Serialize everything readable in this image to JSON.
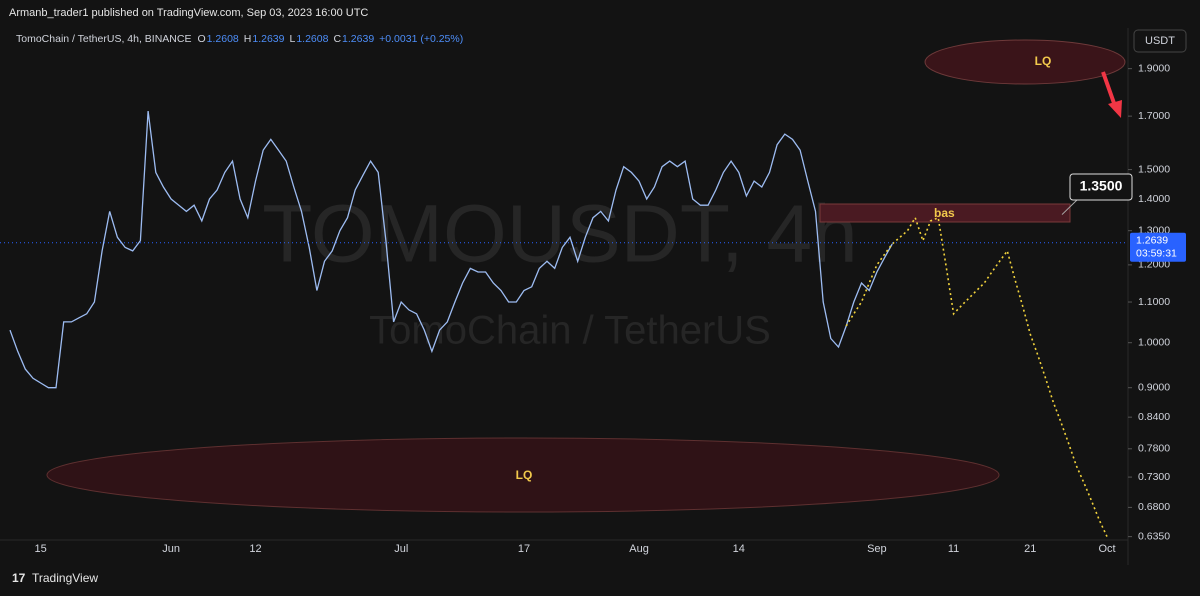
{
  "header": {
    "published": "Armanb_trader1 published on TradingView.com, Sep 03, 2023 16:00 UTC"
  },
  "footer": {
    "brand": "TradingView"
  },
  "chart_data": {
    "type": "line",
    "symbol": "TomoChain / TetherUS, 4h, BINANCE",
    "ohlc": [
      [
        "O",
        "1.2608"
      ],
      [
        "H",
        "1.2639"
      ],
      [
        "L",
        "1.2608"
      ],
      [
        "C",
        "1.2639"
      ]
    ],
    "change": "+0.0031 (+0.25%)",
    "watermark": "TOMOUSDT, 4h",
    "watermark_sub": "TomoChain / TetherUS",
    "currency": "USDT",
    "last_price": 1.2639,
    "countdown": "03:59:31",
    "level": {
      "value": 1.35,
      "label": "1.3500"
    },
    "zone_label": "bas",
    "liquidity_labels": [
      "LQ",
      "LQ"
    ],
    "log_scale": true,
    "categories": [
      null,
      null,
      null,
      null,
      "15",
      null,
      null,
      null,
      null,
      null,
      null,
      null,
      null,
      null,
      null,
      null,
      null,
      null,
      null,
      null,
      null,
      "Jun",
      null,
      null,
      null,
      null,
      null,
      null,
      null,
      null,
      null,
      null,
      "12",
      null,
      null,
      null,
      null,
      null,
      null,
      null,
      null,
      null,
      null,
      null,
      null,
      null,
      null,
      null,
      null,
      null,
      null,
      "Jul",
      null,
      null,
      null,
      null,
      null,
      null,
      null,
      null,
      null,
      null,
      null,
      null,
      null,
      null,
      null,
      "17",
      null,
      null,
      null,
      null,
      null,
      null,
      null,
      null,
      null,
      null,
      null,
      null,
      null,
      null,
      "Aug",
      null,
      null,
      null,
      null,
      null,
      null,
      null,
      null,
      null,
      null,
      null,
      null,
      "14",
      null,
      null,
      null,
      null,
      null,
      null,
      null,
      null,
      null,
      null,
      null,
      null,
      null,
      null,
      null,
      null,
      null,
      "Sep",
      null,
      null,
      null,
      null,
      null,
      null,
      null,
      null,
      null,
      "11",
      null,
      null,
      null,
      null,
      null,
      null,
      null,
      null,
      null,
      "21",
      null,
      null,
      null,
      null,
      null,
      null,
      null,
      null,
      null,
      "Oct"
    ],
    "series": [
      {
        "color": "#9dbcf2",
        "values": [
          1.03,
          0.98,
          0.94,
          0.92,
          0.91,
          0.9,
          0.9,
          1.05,
          1.05,
          1.06,
          1.07,
          1.1,
          1.24,
          1.36,
          1.28,
          1.25,
          1.24,
          1.27,
          1.72,
          1.49,
          1.44,
          1.4,
          1.38,
          1.36,
          1.38,
          1.33,
          1.4,
          1.43,
          1.49,
          1.53,
          1.4,
          1.34,
          1.46,
          1.57,
          1.61,
          1.57,
          1.53,
          1.44,
          1.36,
          1.25,
          1.13,
          1.21,
          1.24,
          1.3,
          1.34,
          1.43,
          1.48,
          1.53,
          1.49,
          1.27,
          1.05,
          1.1,
          1.08,
          1.07,
          1.03,
          0.98,
          1.03,
          1.05,
          1.1,
          1.15,
          1.19,
          1.18,
          1.18,
          1.15,
          1.13,
          1.1,
          1.1,
          1.13,
          1.14,
          1.19,
          1.21,
          1.19,
          1.25,
          1.28,
          1.21,
          1.28,
          1.34,
          1.36,
          1.33,
          1.43,
          1.51,
          1.49,
          1.46,
          1.4,
          1.44,
          1.51,
          1.53,
          1.51,
          1.53,
          1.4,
          1.38,
          1.38,
          1.43,
          1.49,
          1.53,
          1.49,
          1.41,
          1.46,
          1.44,
          1.49,
          1.59,
          1.63,
          1.61,
          1.57,
          1.46,
          1.36,
          1.1,
          1.01,
          0.99,
          1.04,
          1.1,
          1.15,
          1.13,
          1.18,
          1.22,
          1.26,
          null,
          null,
          null,
          null,
          null,
          null,
          null,
          null,
          null,
          null,
          null,
          null,
          null,
          null,
          null,
          null,
          null,
          null,
          null,
          null,
          null,
          null,
          null,
          null,
          null,
          null,
          null,
          null
        ]
      },
      {
        "color": "#f2d33c",
        "style": "dotted",
        "values": [
          null,
          null,
          null,
          null,
          null,
          null,
          null,
          null,
          null,
          null,
          null,
          null,
          null,
          null,
          null,
          null,
          null,
          null,
          null,
          null,
          null,
          null,
          null,
          null,
          null,
          null,
          null,
          null,
          null,
          null,
          null,
          null,
          null,
          null,
          null,
          null,
          null,
          null,
          null,
          null,
          null,
          null,
          null,
          null,
          null,
          null,
          null,
          null,
          null,
          null,
          null,
          null,
          null,
          null,
          null,
          null,
          null,
          null,
          null,
          null,
          null,
          null,
          null,
          null,
          null,
          null,
          null,
          null,
          null,
          null,
          null,
          null,
          null,
          null,
          null,
          null,
          null,
          null,
          null,
          null,
          null,
          null,
          null,
          null,
          null,
          null,
          null,
          null,
          null,
          null,
          null,
          null,
          null,
          null,
          null,
          null,
          null,
          null,
          null,
          null,
          null,
          null,
          null,
          null,
          null,
          null,
          null,
          null,
          null,
          1.04,
          1.07,
          1.1,
          1.15,
          1.2,
          1.23,
          1.26,
          1.28,
          1.3,
          1.34,
          1.27,
          1.33,
          1.34,
          1.2,
          1.07,
          1.09,
          1.11,
          1.13,
          1.15,
          1.18,
          1.21,
          1.24,
          1.16,
          1.09,
          1.02,
          0.97,
          0.92,
          0.87,
          0.83,
          0.79,
          0.75,
          0.72,
          0.69,
          0.66,
          0.635
        ]
      }
    ],
    "ylim": [
      0.63,
      2.08
    ],
    "yticks": [
      {
        "value": 0.635,
        "label": "0.6350"
      },
      {
        "value": 0.68,
        "label": "0.6800"
      },
      {
        "value": 0.73,
        "label": "0.7300"
      },
      {
        "value": 0.78,
        "label": "0.7800"
      },
      {
        "value": 0.84,
        "label": "0.8400"
      },
      {
        "value": 0.9,
        "label": "0.9000"
      },
      {
        "value": 1.0,
        "label": "1.0000"
      },
      {
        "value": 1.1,
        "label": "1.1000"
      },
      {
        "value": 1.2,
        "label": "1.2000"
      },
      {
        "value": 1.3,
        "label": "1.3000"
      },
      {
        "value": 1.4,
        "label": "1.4000"
      },
      {
        "value": 1.5,
        "label": "1.5000"
      },
      {
        "value": 1.7,
        "label": "1.7000"
      },
      {
        "value": 1.9,
        "label": "1.9000"
      }
    ]
  }
}
